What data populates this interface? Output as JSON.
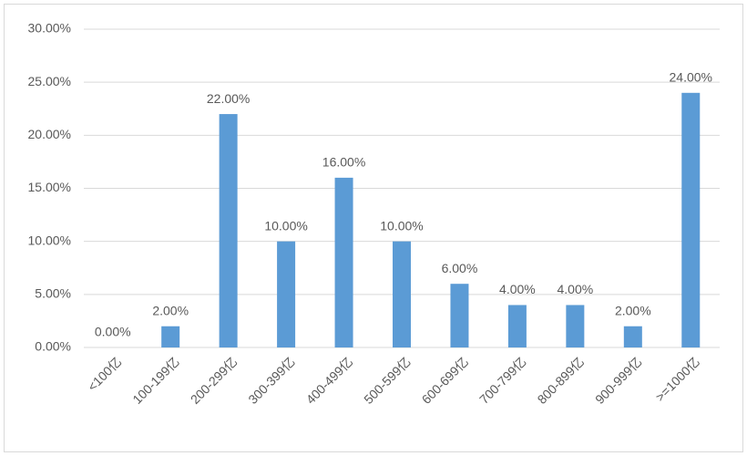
{
  "chart_data": {
    "type": "bar",
    "categories": [
      "<100亿",
      "100-199亿",
      "200-299亿",
      "300-399亿",
      "400-499亿",
      "500-599亿",
      "600-699亿",
      "700-799亿",
      "800-899亿",
      "900-999亿",
      ">=1000亿"
    ],
    "values": [
      0,
      2,
      22,
      10,
      16,
      10,
      6,
      4,
      4,
      2,
      24
    ],
    "value_labels": [
      "0.00%",
      "2.00%",
      "22.00%",
      "10.00%",
      "16.00%",
      "10.00%",
      "6.00%",
      "4.00%",
      "4.00%",
      "2.00%",
      "24.00%"
    ],
    "color": "#5b9bd5",
    "ylim": [
      0,
      30
    ],
    "yticks": [
      {
        "value": 0,
        "label": "0.00%"
      },
      {
        "value": 5,
        "label": "5.00%"
      },
      {
        "value": 10,
        "label": "10.00%"
      },
      {
        "value": 15,
        "label": "15.00%"
      },
      {
        "value": 20,
        "label": "20.00%"
      },
      {
        "value": 25,
        "label": "25.00%"
      },
      {
        "value": 30,
        "label": "30.00%"
      }
    ],
    "grid": true
  }
}
